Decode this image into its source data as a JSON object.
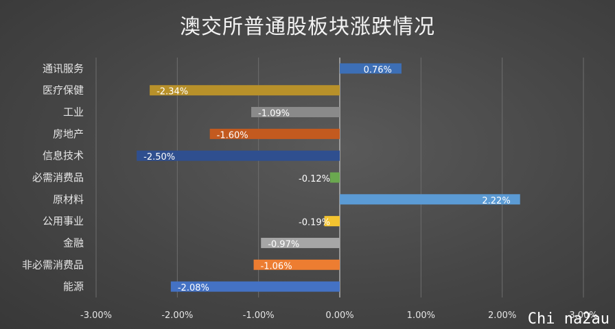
{
  "chart_data": {
    "type": "bar",
    "orientation": "horizontal",
    "title": "澳交所普通股板块涨跌情况",
    "categories": [
      "通讯服务",
      "医疗保健",
      "工业",
      "房地产",
      "信息技术",
      "必需消费品",
      "原材料",
      "公用事业",
      "金融",
      "非必需消费品",
      "能源"
    ],
    "values": [
      0.76,
      -2.34,
      -1.09,
      -1.6,
      -2.5,
      -0.12,
      2.22,
      -0.19,
      -0.97,
      -1.06,
      -2.08
    ],
    "value_labels": [
      "0.76%",
      "-2.34%",
      "-1.09%",
      "-1.60%",
      "-2.50%",
      "-0.12%",
      "2.22%",
      "-0.19%",
      "-0.97%",
      "-1.06%",
      "-2.08%"
    ],
    "colors": [
      "#3d6fb6",
      "#b8912a",
      "#8a8a8a",
      "#c35a1f",
      "#2f4f8f",
      "#6aa84f",
      "#5b9bd5",
      "#f4c430",
      "#a6a6a6",
      "#ed7d31",
      "#4472c4"
    ],
    "xlim": [
      -3,
      3
    ],
    "xticks": [
      -3,
      -2,
      -1,
      0,
      1,
      2,
      3
    ],
    "xtick_labels": [
      "-3.00%",
      "-2.00%",
      "-1.00%",
      "0.00%",
      "1.00%",
      "2.00%",
      "3.00%"
    ],
    "grid": true,
    "legend": "none"
  },
  "watermark": "Chi na2au"
}
